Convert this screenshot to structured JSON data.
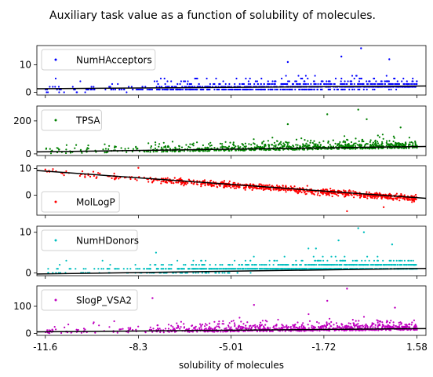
{
  "figure": {
    "title": "Auxiliary task value as a function of solubility of molecules.",
    "xlabel": "solubility of molecules",
    "x_ticks": [
      -11.6,
      -8.3,
      -5.01,
      -1.72,
      1.58
    ],
    "x_tick_labels": [
      "-11.6",
      "-8.3",
      "-5.01",
      "-1.72",
      "1.58"
    ]
  },
  "chart_data": [
    {
      "type": "scatter",
      "series": [
        {
          "name": "NumHAcceptors",
          "color": "#0000ff"
        }
      ],
      "xlim": [
        -11.9,
        1.9
      ],
      "ylim": [
        -1,
        17
      ],
      "y_ticks": [
        0,
        10
      ],
      "y_tick_labels": [
        "0",
        "10"
      ],
      "legend": "top-left",
      "fit_line": {
        "x": [
          -11.9,
          1.9
        ],
        "y": [
          1.3,
          2.3
        ]
      },
      "trend": {
        "start": 0.5,
        "slope": 0.12,
        "spread": 2.2,
        "outliers": [
          [
            -0.4,
            16
          ],
          [
            -1.1,
            13
          ],
          [
            0.6,
            12
          ],
          [
            -3.0,
            11
          ]
        ]
      }
    },
    {
      "type": "scatter",
      "series": [
        {
          "name": "TPSA",
          "color": "#008000"
        }
      ],
      "xlim": [
        -11.9,
        1.9
      ],
      "ylim": [
        -10,
        290
      ],
      "y_ticks": [
        0,
        200
      ],
      "y_tick_labels": [
        "0",
        "200"
      ],
      "legend": "top-left",
      "fit_line": {
        "x": [
          -11.9,
          1.9
        ],
        "y": [
          12,
          45
        ]
      },
      "trend": {
        "start": 10,
        "slope": 2.5,
        "spread": 35,
        "outliers": [
          [
            -0.5,
            268
          ],
          [
            -1.6,
            240
          ],
          [
            -0.2,
            210
          ],
          [
            -3.0,
            180
          ],
          [
            1.0,
            160
          ]
        ]
      }
    },
    {
      "type": "scatter",
      "series": [
        {
          "name": "MolLogP",
          "color": "#ff0000"
        }
      ],
      "xlim": [
        -11.9,
        1.9
      ],
      "ylim": [
        -7.5,
        11
      ],
      "y_ticks": [
        0,
        10
      ],
      "y_tick_labels": [
        "0",
        "10"
      ],
      "legend": "bottom-left",
      "fit_line": {
        "x": [
          -11.9,
          1.9
        ],
        "y": [
          9.2,
          -1.2
        ]
      },
      "trend": {
        "start": 9.0,
        "slope": -0.76,
        "spread": 1.0,
        "outliers": [
          [
            -11.6,
            9.6
          ],
          [
            -8.3,
            10.2
          ],
          [
            -0.9,
            -6.0
          ],
          [
            0.4,
            -4.5
          ]
        ]
      }
    },
    {
      "type": "scatter",
      "series": [
        {
          "name": "NumHDonors",
          "color": "#00bfbf"
        }
      ],
      "xlim": [
        -11.9,
        1.9
      ],
      "ylim": [
        -0.7,
        11.5
      ],
      "y_ticks": [
        0,
        10
      ],
      "y_tick_labels": [
        "0",
        "10"
      ],
      "legend": "top-left",
      "fit_line": {
        "x": [
          -11.9,
          1.9
        ],
        "y": [
          -0.3,
          1.1
        ]
      },
      "trend": {
        "start": 0.1,
        "slope": 0.1,
        "spread": 1.6,
        "outliers": [
          [
            -0.5,
            11
          ],
          [
            -0.3,
            10
          ],
          [
            -1.2,
            8
          ],
          [
            0.7,
            7
          ],
          [
            -2.0,
            6
          ]
        ]
      }
    },
    {
      "type": "scatter",
      "series": [
        {
          "name": "SlogP_VSA2",
          "color": "#bf00bf"
        }
      ],
      "xlim": [
        -11.9,
        1.9
      ],
      "ylim": [
        -7,
        175
      ],
      "y_ticks": [
        0,
        100
      ],
      "y_tick_labels": [
        "0",
        "100"
      ],
      "legend": "top-left",
      "fit_line": {
        "x": [
          -11.9,
          1.9
        ],
        "y": [
          6,
          18
        ]
      },
      "trend": {
        "start": 5,
        "slope": 1.0,
        "spread": 22,
        "outliers": [
          [
            -0.9,
            165
          ],
          [
            -7.8,
            130
          ],
          [
            -1.6,
            120
          ],
          [
            -4.2,
            105
          ],
          [
            0.8,
            95
          ]
        ]
      }
    }
  ]
}
